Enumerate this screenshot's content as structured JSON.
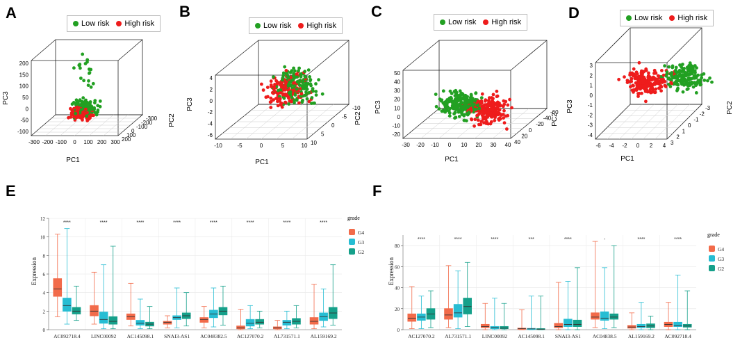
{
  "colors": {
    "low": "#22a022",
    "high": "#ee1c1c",
    "G4": "#f26b4a",
    "G3": "#26bdd3",
    "G2": "#15a08a"
  },
  "pca": [
    {
      "letter": "A",
      "legend": [
        "Low risk",
        "High risk"
      ],
      "x_label": "PC1",
      "y_label": "PC2",
      "z_label": "PC3",
      "x_ticks": [
        "-300",
        "-200",
        "-100",
        "0",
        "100",
        "200",
        "300"
      ],
      "y_ticks": [
        "-300",
        "-200",
        "-100",
        "0",
        "100",
        "200"
      ],
      "z_ticks": [
        "-100",
        "-50",
        "0",
        "50",
        "100",
        "150",
        "200"
      ]
    },
    {
      "letter": "B",
      "legend": [
        "Low risk",
        "High risk"
      ],
      "x_label": "PC1",
      "y_label": "PC2",
      "z_label": "PC3",
      "x_ticks": [
        "-10",
        "-5",
        "0",
        "5",
        "10"
      ],
      "y_ticks": [
        "-10",
        "-5",
        "0",
        "5",
        "10"
      ],
      "z_ticks": [
        "-6",
        "-4",
        "-2",
        "0",
        "2",
        "4"
      ]
    },
    {
      "letter": "C",
      "legend": [
        "Low risk",
        "High risk"
      ],
      "x_label": "PC1",
      "y_label": "PC2",
      "z_label": "PC3",
      "x_ticks": [
        "-30",
        "-20",
        "-10",
        "0",
        "10",
        "20",
        "30",
        "40"
      ],
      "y_ticks": [
        "-60",
        "-40",
        "-20",
        "0",
        "20",
        "40"
      ],
      "z_ticks": [
        "-20",
        "-10",
        "0",
        "10",
        "20",
        "30",
        "40",
        "50"
      ]
    },
    {
      "letter": "D",
      "legend": [
        "Low risk",
        "High risk"
      ],
      "x_label": "PC1",
      "y_label": "PC2",
      "z_label": "PC3",
      "x_ticks": [
        "-6",
        "-4",
        "-2",
        "0",
        "2",
        "4"
      ],
      "y_ticks": [
        "-3",
        "-2",
        "-1",
        "0",
        "1",
        "2",
        "3"
      ],
      "z_ticks": [
        "-4",
        "-3",
        "-2",
        "-1",
        "0",
        "1",
        "2",
        "3"
      ]
    }
  ],
  "chart_data": [
    {
      "type": "box",
      "letter": "E",
      "ylabel": "Expression",
      "legend_title": "grade",
      "ylim": [
        0,
        12
      ],
      "yticks": [
        "0",
        "2",
        "4",
        "6",
        "8",
        "10",
        "12"
      ],
      "groups": [
        "G4",
        "G3",
        "G2"
      ],
      "categories": [
        "AC092718.4",
        "LINC00092",
        "AC145098.1",
        "SNAI3-AS1",
        "AC048382.5",
        "AC127070.2",
        "AL731571.1",
        "AL159169.2"
      ],
      "significance": [
        "****",
        "****",
        "****",
        "****",
        "****",
        "****",
        "****",
        "****"
      ],
      "boxes": [
        [
          [
            1.4,
            3.6,
            4.4,
            5.5,
            10.3
          ],
          [
            0.6,
            2.0,
            2.6,
            3.4,
            10.9
          ],
          [
            1.0,
            1.7,
            2.0,
            2.4,
            4.7
          ]
        ],
        [
          [
            0.6,
            1.5,
            2.0,
            2.6,
            6.2
          ],
          [
            0.1,
            0.7,
            1.1,
            1.9,
            7.0
          ],
          [
            0.1,
            0.6,
            0.9,
            1.4,
            9.0
          ]
        ],
        [
          [
            0.4,
            1.1,
            1.4,
            1.7,
            5.0
          ],
          [
            0.1,
            0.5,
            0.7,
            1.0,
            3.3
          ],
          [
            0.1,
            0.4,
            0.6,
            0.8,
            2.5
          ]
        ],
        [
          [
            0.2,
            0.6,
            0.8,
            0.9,
            1.5
          ],
          [
            0.2,
            1.1,
            1.3,
            1.5,
            4.5
          ],
          [
            0.4,
            1.2,
            1.5,
            1.8,
            4.0
          ]
        ],
        [
          [
            0.2,
            0.8,
            1.1,
            1.3,
            2.5
          ],
          [
            0.3,
            1.3,
            1.7,
            2.1,
            4.5
          ],
          [
            0.5,
            1.6,
            2.0,
            2.4,
            4.7
          ]
        ],
        [
          [
            0.0,
            0.1,
            0.2,
            0.4,
            2.2
          ],
          [
            0.1,
            0.4,
            0.7,
            1.1,
            2.6
          ],
          [
            0.2,
            0.6,
            0.8,
            1.1,
            2.0
          ]
        ],
        [
          [
            0.0,
            0.1,
            0.2,
            0.3,
            1.0
          ],
          [
            0.1,
            0.5,
            0.8,
            1.0,
            2.0
          ],
          [
            0.2,
            0.6,
            0.9,
            1.2,
            2.6
          ]
        ],
        [
          [
            0.1,
            0.6,
            0.9,
            1.3,
            4.9
          ],
          [
            0.3,
            1.0,
            1.4,
            1.8,
            4.4
          ],
          [
            0.5,
            1.2,
            1.8,
            2.4,
            7.0
          ]
        ]
      ]
    },
    {
      "type": "box",
      "letter": "F",
      "ylabel": "Expression",
      "legend_title": "grade",
      "ylim": [
        0,
        90
      ],
      "yticks": [
        "0",
        "20",
        "40",
        "60",
        "80"
      ],
      "groups": [
        "G4",
        "G3",
        "G2"
      ],
      "categories": [
        "AC127070.2",
        "AL731571.1",
        "LINC00092",
        "AC145098.1",
        "SNAI3-AS1",
        "AC04838.5",
        "AL159169.2",
        "AC092718.4"
      ],
      "significance": [
        "****",
        "****",
        "****",
        "***",
        "****",
        "-",
        "****",
        "****"
      ],
      "boxes": [
        [
          [
            1.0,
            8.0,
            11.0,
            15.0,
            41.0
          ],
          [
            1.0,
            9.0,
            12.0,
            15.0,
            32.0
          ],
          [
            2.0,
            10.0,
            15.0,
            20.0,
            37.0
          ]
        ],
        [
          [
            2.0,
            10.0,
            14.0,
            20.0,
            61.0
          ],
          [
            1.0,
            12.0,
            16.0,
            24.0,
            56.0
          ],
          [
            3.0,
            15.0,
            22.0,
            30.0,
            64.0
          ]
        ],
        [
          [
            0.0,
            2.0,
            3.0,
            5.0,
            25.0
          ],
          [
            0.0,
            1.0,
            2.0,
            3.0,
            30.0
          ],
          [
            0.0,
            1.0,
            1.5,
            3.0,
            25.0
          ]
        ],
        [
          [
            0.0,
            0.5,
            1.0,
            1.5,
            19.0
          ],
          [
            0.0,
            0.3,
            0.8,
            1.2,
            32.0
          ],
          [
            0.0,
            0.2,
            0.5,
            1.0,
            32.0
          ]
        ],
        [
          [
            0.0,
            2.0,
            3.0,
            6.0,
            45.0
          ],
          [
            0.0,
            3.0,
            5.0,
            10.0,
            46.0
          ],
          [
            0.0,
            3.0,
            5.0,
            9.0,
            59.0
          ]
        ],
        [
          [
            2.0,
            10.0,
            12.0,
            16.0,
            84.0
          ],
          [
            1.0,
            9.0,
            11.0,
            17.0,
            59.0
          ],
          [
            2.0,
            10.0,
            12.0,
            15.0,
            80.0
          ]
        ],
        [
          [
            0.0,
            1.5,
            2.5,
            4.0,
            16.0
          ],
          [
            0.0,
            2.0,
            3.0,
            5.0,
            26.0
          ],
          [
            0.0,
            2.0,
            3.5,
            5.5,
            13.0
          ]
        ],
        [
          [
            0.0,
            3.0,
            5.0,
            7.0,
            26.0
          ],
          [
            0.0,
            3.0,
            4.0,
            7.0,
            52.0
          ],
          [
            0.0,
            2.5,
            3.5,
            5.0,
            37.0
          ]
        ]
      ]
    }
  ]
}
